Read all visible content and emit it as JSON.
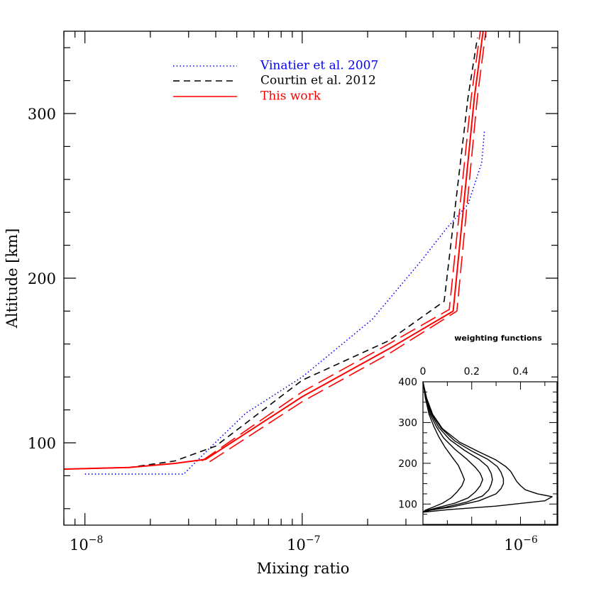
{
  "chart_data": [
    {
      "type": "line",
      "xlabel": "Mixing ratio",
      "ylabel": "Altitude [km]",
      "xscale": "log",
      "xlim": [
        8e-09,
        1.5e-06
      ],
      "ylim": [
        50,
        350
      ],
      "xticks": [
        {
          "value": 1e-08,
          "base": "10",
          "exp": "−8"
        },
        {
          "value": 1e-07,
          "base": "10",
          "exp": "−7"
        },
        {
          "value": 1e-06,
          "base": "10",
          "exp": "−6"
        }
      ],
      "yticks": [
        {
          "value": 100,
          "label": "100"
        },
        {
          "value": 200,
          "label": "200"
        },
        {
          "value": 300,
          "label": "300"
        }
      ],
      "legend_placement": "top-center",
      "series": [
        {
          "name": "Vinatier et al. 2007",
          "color": "#0000ff",
          "style": "dotted",
          "points": [
            [
              1e-08,
              81
            ],
            [
              2.85e-08,
              81
            ],
            [
              3.9e-08,
              99
            ],
            [
              5.5e-08,
              118
            ],
            [
              1e-07,
              140
            ],
            [
              2.1e-07,
              175
            ],
            [
              3.5e-07,
              210
            ],
            [
              4.6e-07,
              230
            ],
            [
              5.8e-07,
              245
            ],
            [
              6.7e-07,
              270
            ],
            [
              6.9e-07,
              290
            ]
          ]
        },
        {
          "name": "Courtin et al. 2012",
          "color": "#000000",
          "style": "dashed",
          "points": [
            [
              8e-09,
              84
            ],
            [
              1.6e-08,
              85
            ],
            [
              2.6e-08,
              89
            ],
            [
              4e-08,
              98
            ],
            [
              1e-07,
              138
            ],
            [
              2.5e-07,
              162
            ],
            [
              4.5e-07,
              186
            ],
            [
              5.8e-07,
              310
            ],
            [
              6.4e-07,
              346
            ]
          ]
        },
        {
          "name": "This work",
          "color": "#ff0000",
          "style": "solid",
          "points": [
            [
              8e-09,
              84
            ],
            [
              1.6e-08,
              85
            ],
            [
              2.6e-08,
              87.5
            ],
            [
              3.6e-08,
              90
            ],
            [
              1e-07,
              128
            ],
            [
              2.5e-07,
              157
            ],
            [
              4.95e-07,
              180
            ],
            [
              6.2e-07,
              310
            ],
            [
              6.8e-07,
              350
            ]
          ]
        },
        {
          "name": "This work (lower bound)",
          "color": "#ff0000",
          "style": "longdash",
          "points": [
            [
              3.45e-08,
              89
            ],
            [
              1e-07,
              131
            ],
            [
              2.5e-07,
              160
            ],
            [
              4.75e-07,
              181
            ],
            [
              6e-07,
              310
            ],
            [
              6.6e-07,
              350
            ]
          ]
        },
        {
          "name": "This work (upper bound)",
          "color": "#ff0000",
          "style": "longdash",
          "points": [
            [
              3.75e-08,
              88.5
            ],
            [
              1e-07,
              125
            ],
            [
              2.5e-07,
              154
            ],
            [
              5.15e-07,
              180
            ],
            [
              6.4e-07,
              310
            ],
            [
              7e-07,
              350
            ]
          ]
        }
      ]
    },
    {
      "type": "line",
      "title": "weighting functions",
      "xlim": [
        0,
        0.55
      ],
      "ylim": [
        50,
        400
      ],
      "xticks": [
        {
          "value": 0,
          "label": "0"
        },
        {
          "value": 0.2,
          "label": "0.2"
        },
        {
          "value": 0.4,
          "label": "0.4"
        }
      ],
      "yticks": [
        {
          "value": 100,
          "label": "100"
        },
        {
          "value": 200,
          "label": "200"
        },
        {
          "value": 300,
          "label": "300"
        },
        {
          "value": 400,
          "label": "400"
        }
      ],
      "color": "#000000",
      "series": [
        {
          "points": [
            [
              0.0,
              400
            ],
            [
              0.01,
              360
            ],
            [
              0.025,
              320
            ],
            [
              0.045,
              290
            ],
            [
              0.065,
              265
            ],
            [
              0.09,
              240
            ],
            [
              0.12,
              215
            ],
            [
              0.145,
              195
            ],
            [
              0.16,
              175
            ],
            [
              0.17,
              160
            ],
            [
              0.16,
              145
            ],
            [
              0.14,
              130
            ],
            [
              0.115,
              115
            ],
            [
              0.08,
              102
            ],
            [
              0.04,
              92
            ],
            [
              0.01,
              85
            ],
            [
              0.0,
              80
            ]
          ]
        },
        {
          "points": [
            [
              0.0,
              400
            ],
            [
              0.012,
              360
            ],
            [
              0.03,
              320
            ],
            [
              0.055,
              290
            ],
            [
              0.085,
              262
            ],
            [
              0.13,
              235
            ],
            [
              0.18,
              210
            ],
            [
              0.215,
              190
            ],
            [
              0.235,
              175
            ],
            [
              0.245,
              160
            ],
            [
              0.235,
              145
            ],
            [
              0.215,
              130
            ],
            [
              0.185,
              115
            ],
            [
              0.13,
              102
            ],
            [
              0.065,
              92
            ],
            [
              0.02,
              85
            ],
            [
              0.0,
              80
            ]
          ]
        },
        {
          "points": [
            [
              0.0,
              400
            ],
            [
              0.013,
              360
            ],
            [
              0.035,
              320
            ],
            [
              0.065,
              288
            ],
            [
              0.11,
              258
            ],
            [
              0.17,
              232
            ],
            [
              0.23,
              210
            ],
            [
              0.265,
              192
            ],
            [
              0.28,
              175
            ],
            [
              0.285,
              160
            ],
            [
              0.28,
              148
            ],
            [
              0.27,
              135
            ],
            [
              0.245,
              120
            ],
            [
              0.18,
              105
            ],
            [
              0.09,
              92
            ],
            [
              0.025,
              85
            ],
            [
              0.0,
              80
            ]
          ]
        },
        {
          "points": [
            [
              0.0,
              400
            ],
            [
              0.014,
              360
            ],
            [
              0.038,
              320
            ],
            [
              0.075,
              286
            ],
            [
              0.13,
              255
            ],
            [
              0.2,
              230
            ],
            [
              0.265,
              210
            ],
            [
              0.305,
              192
            ],
            [
              0.32,
              178
            ],
            [
              0.33,
              162
            ],
            [
              0.33,
              150
            ],
            [
              0.32,
              138
            ],
            [
              0.3,
              125
            ],
            [
              0.23,
              108
            ],
            [
              0.12,
              93
            ],
            [
              0.03,
              85
            ],
            [
              0.0,
              80
            ]
          ]
        },
        {
          "points": [
            [
              0.0,
              400
            ],
            [
              0.015,
              360
            ],
            [
              0.04,
              320
            ],
            [
              0.08,
              285
            ],
            [
              0.15,
              252
            ],
            [
              0.23,
              228
            ],
            [
              0.3,
              208
            ],
            [
              0.34,
              192
            ],
            [
              0.36,
              180
            ],
            [
              0.375,
              165
            ],
            [
              0.385,
              155
            ],
            [
              0.4,
              145
            ],
            [
              0.42,
              135
            ],
            [
              0.47,
              125
            ],
            [
              0.53,
              118
            ],
            [
              0.5,
              108
            ],
            [
              0.3,
              95
            ],
            [
              0.1,
              86
            ],
            [
              0.0,
              80
            ]
          ]
        }
      ]
    }
  ]
}
